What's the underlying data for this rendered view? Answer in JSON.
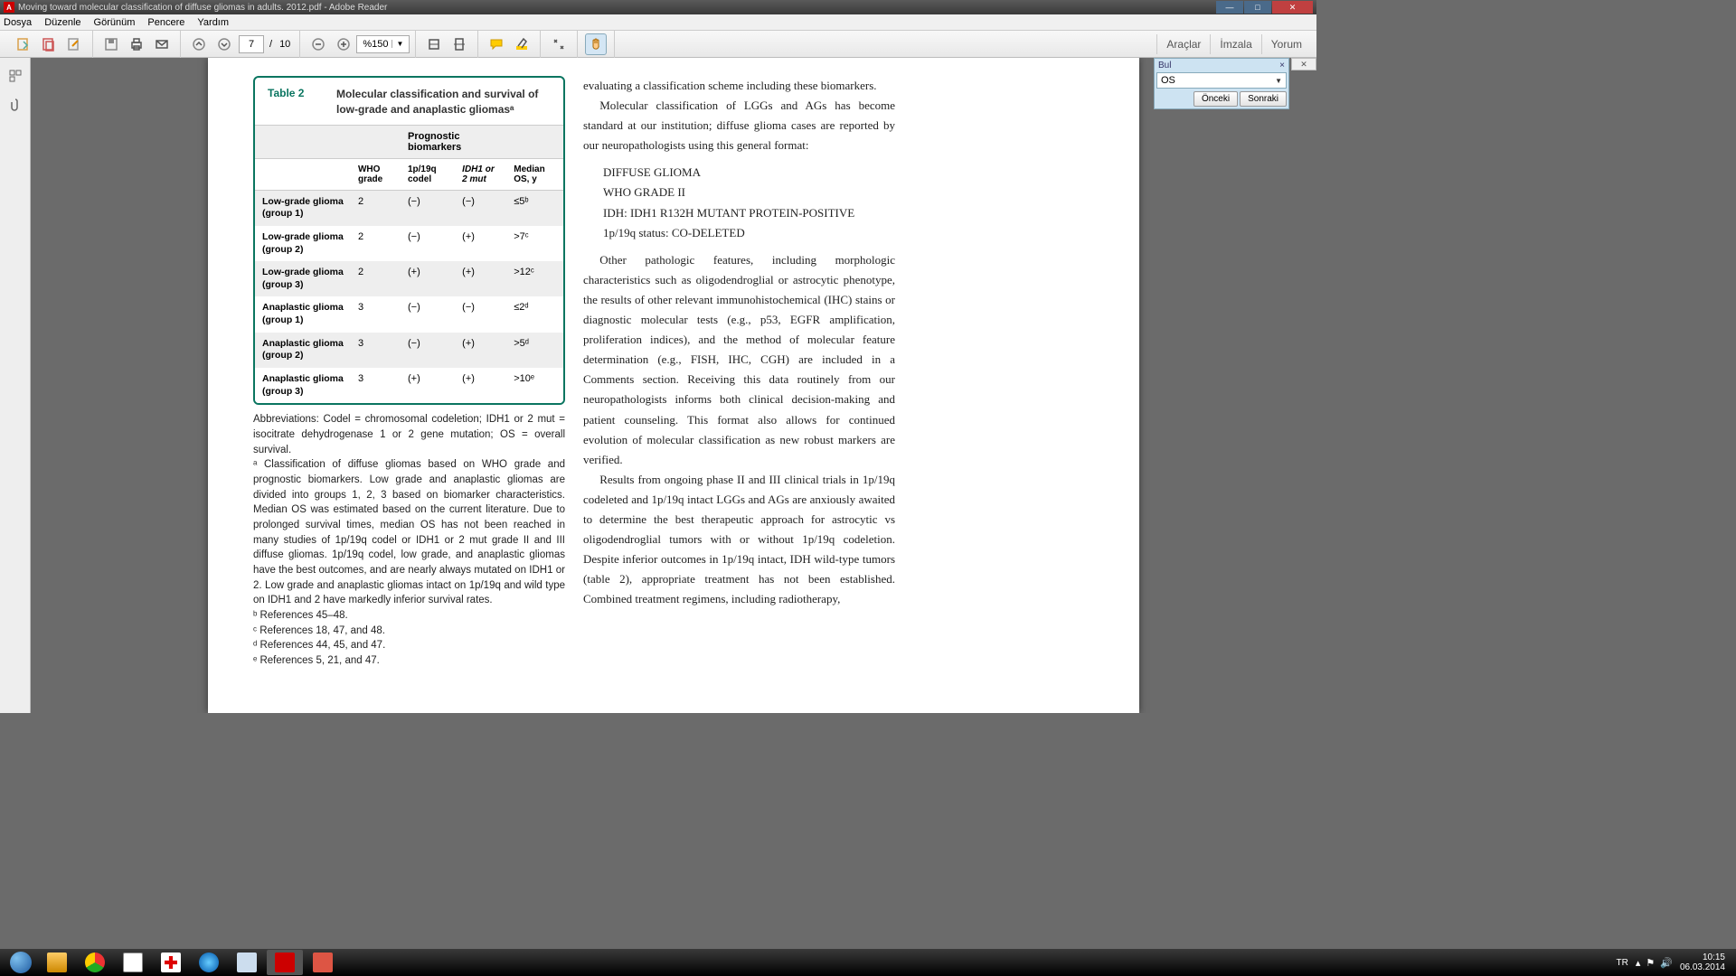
{
  "window": {
    "title": "Moving toward molecular classification of diffuse gliomas in adults. 2012.pdf - Adobe Reader"
  },
  "menu": {
    "items": [
      "Dosya",
      "Düzenle",
      "Görünüm",
      "Pencere",
      "Yardım"
    ]
  },
  "toolbar": {
    "page_current": "7",
    "page_sep": "/",
    "page_total": "10",
    "zoom": "%150",
    "right": {
      "tools": "Araçlar",
      "sign": "İmzala",
      "comment": "Yorum"
    }
  },
  "find": {
    "title": "Bul",
    "value": "OS",
    "prev": "Önceki",
    "next": "Sonraki"
  },
  "table2": {
    "label": "Table 2",
    "title": "Molecular classification and survival of low-grade and anaplastic gliomasᵃ",
    "group_header": "Prognostic biomarkers",
    "columns": [
      "",
      "WHO grade",
      "1p/19q codel",
      "IDH1 or 2 mut",
      "Median OS, y"
    ],
    "col_italic": [
      false,
      false,
      false,
      true,
      false
    ],
    "rows": [
      {
        "name": "Low-grade glioma (group 1)",
        "grade": "2",
        "codel": "(−)",
        "idh": "(−)",
        "os": "≤5ᵇ"
      },
      {
        "name": "Low-grade glioma (group 2)",
        "grade": "2",
        "codel": "(−)",
        "idh": "(+)",
        "os": ">7ᶜ"
      },
      {
        "name": "Low-grade glioma (group 3)",
        "grade": "2",
        "codel": "(+)",
        "idh": "(+)",
        "os": ">12ᶜ"
      },
      {
        "name": "Anaplastic glioma (group 1)",
        "grade": "3",
        "codel": "(−)",
        "idh": "(−)",
        "os": "≤2ᵈ"
      },
      {
        "name": "Anaplastic glioma (group 2)",
        "grade": "3",
        "codel": "(−)",
        "idh": "(+)",
        "os": ">5ᵈ"
      },
      {
        "name": "Anaplastic glioma (group 3)",
        "grade": "3",
        "codel": "(+)",
        "idh": "(+)",
        "os": ">10ᵉ"
      }
    ],
    "notes": {
      "abbr": "Abbreviations: Codel = chromosomal codeletion; IDH1 or 2 mut = isocitrate dehydrogenase 1 or 2 gene mutation; OS = overall survival.",
      "a": "ᵃ Classification of diffuse gliomas based on WHO grade and prognostic biomarkers. Low grade and anaplastic gliomas are divided into groups 1, 2, 3 based on biomarker characteristics. Median OS was estimated based on the current literature. Due to prolonged survival times, median OS has not been reached in many studies of 1p/19q codel or IDH1 or 2 mut grade II and III diffuse gliomas. 1p/19q codel, low grade, and anaplastic gliomas have the best outcomes, and are nearly always mutated on IDH1 or 2. Low grade and anaplastic gliomas intact on 1p/19q and wild type on IDH1 and 2 have markedly inferior survival rates.",
      "b": "ᵇ References 45–48.",
      "c": "ᶜ References 18, 47, and 48.",
      "d": "ᵈ References 44, 45, and 47.",
      "e": "ᵉ References 5, 21, and 47."
    }
  },
  "body": {
    "p1": "evaluating a classification scheme including these biomarkers.",
    "p2": "Molecular classification of LGGs and AGs has become standard at our institution; diffuse glioma cases are reported by our neuropathologists using this general format:",
    "fmt1": "DIFFUSE GLIOMA",
    "fmt2": "WHO GRADE II",
    "fmt3": "IDH: IDH1 R132H MUTANT PROTEIN-POSITIVE",
    "fmt4": "1p/19q status: CO-DELETED",
    "p3": "Other pathologic features, including morphologic characteristics such as oligodendroglial or astrocytic phenotype, the results of other relevant immunohistochemical (IHC) stains or diagnostic molecular tests (e.g., p53, EGFR amplification, proliferation indices), and the method of molecular feature determination (e.g., FISH, IHC, CGH) are included in a Comments section. Receiving this data routinely from our neuropathologists informs both clinical decision-making and patient counseling. This format also allows for continued evolution of molecular classification as new robust markers are verified.",
    "p4": "Results from ongoing phase II and III clinical trials in 1p/19q codeleted and 1p/19q intact LGGs and AGs are anxiously awaited to determine the best therapeutic approach for astrocytic vs oligodendroglial tumors with or without 1p/19q codeletion. Despite inferior outcomes in 1p/19q intact, IDH wild-type tumors (table 2), appropriate treatment has not been established. Combined treatment regimens, including radiotherapy,"
  },
  "tray": {
    "lang": "TR",
    "time": "10:15",
    "date": "06.03.2014"
  },
  "colors": {
    "table_border": "#0a7560",
    "find_bg": "#cde3f2"
  }
}
